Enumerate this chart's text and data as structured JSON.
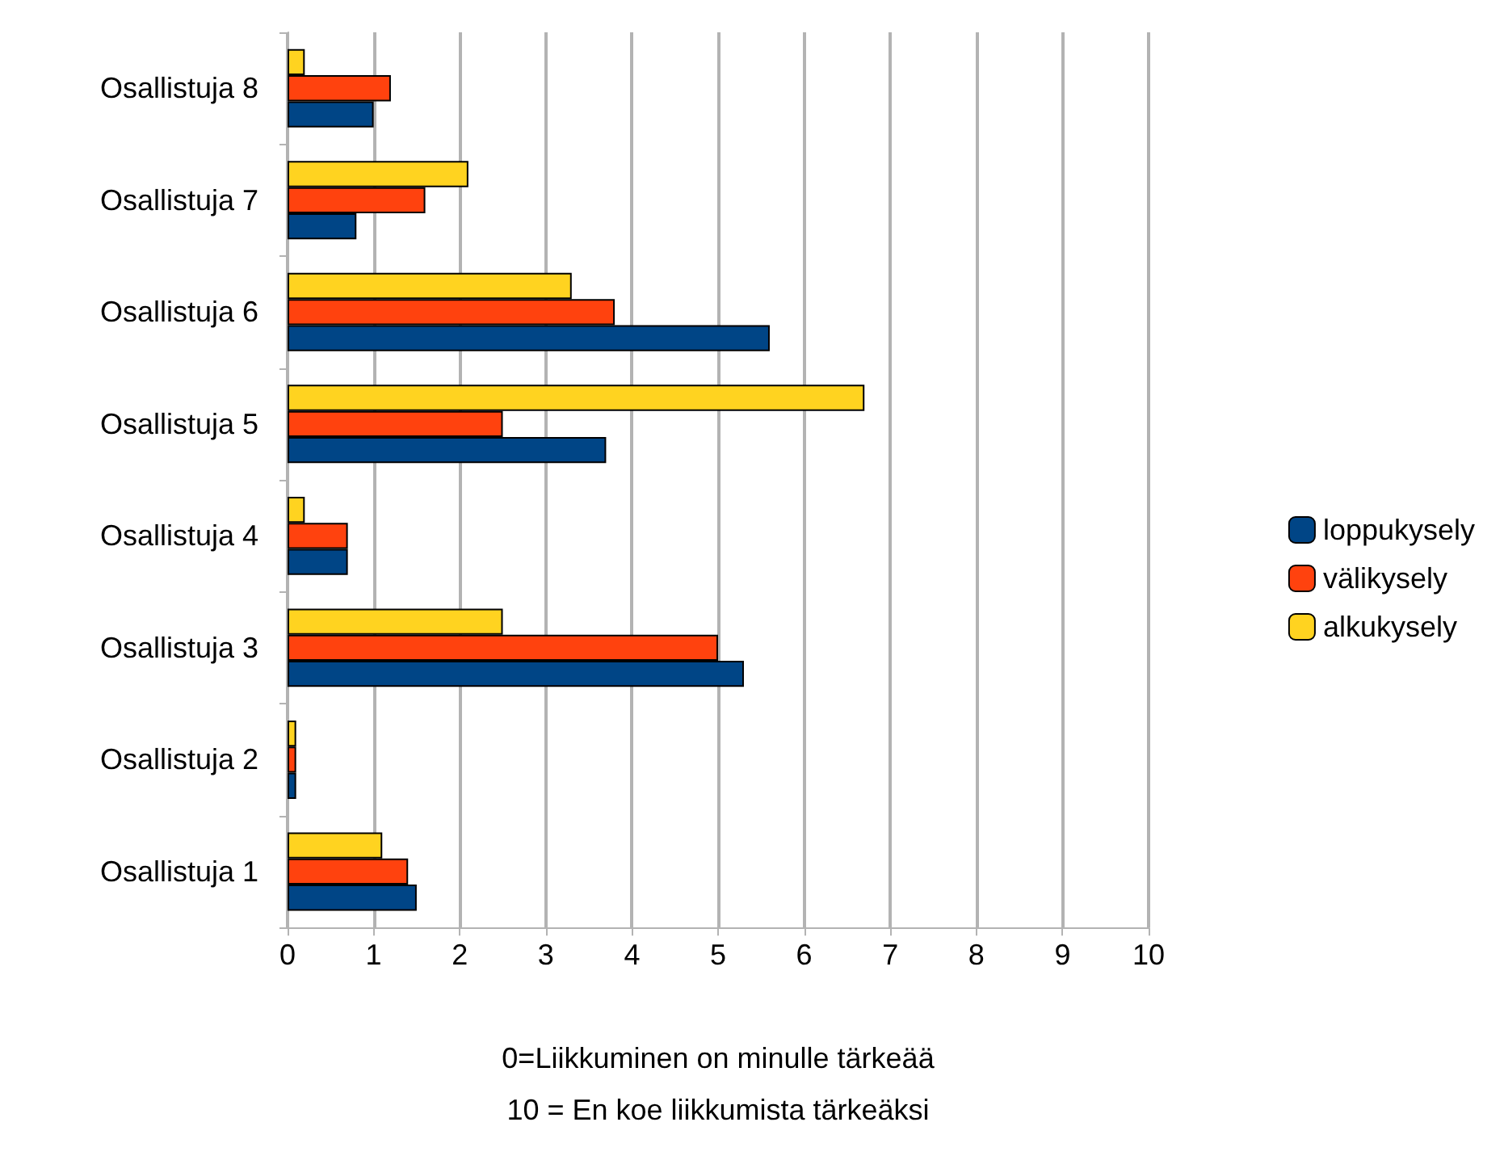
{
  "chart_data": {
    "type": "bar",
    "orientation": "horizontal",
    "xlabel": "0=Liikkuminen on minulle tärkeää\n10 = En koe liikkumista tärkeäksi",
    "categories": [
      "Osallistuja 8",
      "Osallistuja 7",
      "Osallistuja 6",
      "Osallistuja 5",
      "Osallistuja 4",
      "Osallistuja 3",
      "Osallistuja 2",
      "Osallistuja 1"
    ],
    "series": [
      {
        "name": "loppukysely",
        "color": "#004586",
        "values": [
          1.0,
          0.8,
          5.6,
          3.7,
          0.7,
          5.3,
          0.1,
          1.5
        ]
      },
      {
        "name": "välikysely",
        "color": "#ff420e",
        "values": [
          1.2,
          1.6,
          3.8,
          2.5,
          0.7,
          5.0,
          0.1,
          1.4
        ]
      },
      {
        "name": "alkukysely",
        "color": "#ffd320",
        "values": [
          0.2,
          2.1,
          3.3,
          6.7,
          0.2,
          2.5,
          0.1,
          1.1
        ]
      }
    ],
    "xlim": [
      0,
      10
    ],
    "xticks": [
      0,
      1,
      2,
      3,
      4,
      5,
      6,
      7,
      8,
      9,
      10
    ],
    "grid": "x",
    "legend": "right"
  }
}
